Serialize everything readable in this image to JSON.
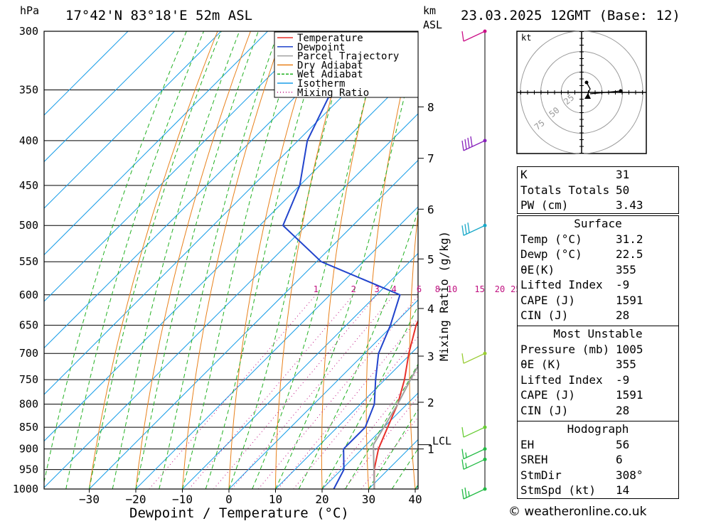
{
  "header": {
    "pressure_unit": "hPa",
    "location": "17°42'N  83°18'E  52m  ASL",
    "height_unit_1": "km",
    "height_unit_2": "ASL",
    "datetime": "23.03.2025  12GMT  (Base: 12)"
  },
  "chart_data": {
    "type": "line",
    "title": "17°42'N  83°18'E  52m  ASL",
    "xlabel": "Dewpoint / Temperature (°C)",
    "ylabel": "hPa",
    "right_label": "Mixing Ratio (g/kg)",
    "x_ticks": [
      -30,
      -20,
      -10,
      0,
      10,
      20,
      30,
      40
    ],
    "x_tick_labels": [
      "−30",
      "−20",
      "−10",
      "0",
      "10",
      "20",
      "30",
      "40"
    ],
    "xlim": [
      -40,
      40
    ],
    "y_ticks": [
      300,
      350,
      400,
      450,
      500,
      550,
      600,
      650,
      700,
      750,
      800,
      850,
      900,
      950,
      1000
    ],
    "ylim": [
      1000,
      300
    ],
    "y_scale": "log",
    "km_ticks": [
      {
        "label": "1",
        "p": 900
      },
      {
        "label": "2",
        "p": 796
      },
      {
        "label": "3",
        "p": 705
      },
      {
        "label": "4",
        "p": 622
      },
      {
        "label": "5",
        "p": 546
      },
      {
        "label": "6",
        "p": 479
      },
      {
        "label": "7",
        "p": 419
      },
      {
        "label": "8",
        "p": 366
      }
    ],
    "lcl": {
      "label": "LCL",
      "p": 890
    },
    "mixing_ratio_labels": [
      "1",
      "2",
      "3",
      "4",
      "6",
      "8",
      "10",
      "15",
      "20",
      "25"
    ],
    "mixing_ratio_values": [
      1,
      2,
      3,
      4,
      6,
      8,
      10,
      15,
      20,
      25
    ],
    "legend": [
      {
        "name": "Temperature",
        "color": "#e8302a",
        "dash": "solid"
      },
      {
        "name": "Dewpoint",
        "color": "#2244cc",
        "dash": "solid"
      },
      {
        "name": "Parcel Trajectory",
        "color": "#a0a0a0",
        "dash": "solid"
      },
      {
        "name": "Dry Adiabat",
        "color": "#e8801a",
        "dash": "solid"
      },
      {
        "name": "Wet Adiabat",
        "color": "#22b022",
        "dash": "dashed"
      },
      {
        "name": "Isotherm",
        "color": "#1a9ee8",
        "dash": "solid"
      },
      {
        "name": "Mixing Ratio",
        "color": "#c01080",
        "dash": "dotted"
      }
    ],
    "legend_position": "top-right",
    "series": [
      {
        "name": "Temperature",
        "color": "#e8302a",
        "points": [
          [
            1000,
            31.2
          ],
          [
            950,
            27.0
          ],
          [
            900,
            23.5
          ],
          [
            850,
            20.8
          ],
          [
            800,
            18.0
          ],
          [
            750,
            14.2
          ],
          [
            700,
            9.5
          ],
          [
            650,
            5.0
          ],
          [
            600,
            1.5
          ],
          [
            550,
            -3.5
          ],
          [
            500,
            -9.5
          ],
          [
            450,
            -17.0
          ],
          [
            400,
            -24.5
          ],
          [
            350,
            -33.0
          ]
        ]
      },
      {
        "name": "Dewpoint",
        "color": "#2244cc",
        "points": [
          [
            1000,
            22.5
          ],
          [
            950,
            20.5
          ],
          [
            900,
            16.0
          ],
          [
            850,
            16.0
          ],
          [
            800,
            13.0
          ],
          [
            750,
            8.0
          ],
          [
            700,
            3.0
          ],
          [
            650,
            -0.5
          ],
          [
            600,
            -5.0
          ],
          [
            550,
            -29.0
          ],
          [
            500,
            -45.0
          ],
          [
            450,
            -50.0
          ],
          [
            400,
            -58.0
          ],
          [
            300,
            -70.0
          ]
        ]
      },
      {
        "name": "Parcel Trajectory",
        "color": "#a0a0a0",
        "points": [
          [
            1000,
            31.2
          ],
          [
            890,
            21.5
          ],
          [
            850,
            20.0
          ],
          [
            800,
            18.0
          ],
          [
            750,
            15.5
          ],
          [
            700,
            13.0
          ],
          [
            650,
            10.0
          ],
          [
            600,
            6.5
          ],
          [
            550,
            2.5
          ],
          [
            500,
            -2.5
          ],
          [
            450,
            -8.5
          ],
          [
            400,
            -16.0
          ],
          [
            370,
            -21.0
          ]
        ]
      }
    ],
    "wind_barbs": [
      {
        "p": 300,
        "speed_kt": 10,
        "color": "#cc1188"
      },
      {
        "p": 400,
        "speed_kt": 40,
        "color": "#8822bb"
      },
      {
        "p": 500,
        "speed_kt": 30,
        "color": "#18a8c8"
      },
      {
        "p": 700,
        "speed_kt": 10,
        "color": "#99cc33"
      },
      {
        "p": 850,
        "speed_kt": 10,
        "color": "#66cc33"
      },
      {
        "p": 900,
        "speed_kt": 15,
        "color": "#22bb44"
      },
      {
        "p": 925,
        "speed_kt": 15,
        "color": "#22bb44"
      },
      {
        "p": 1000,
        "speed_kt": 25,
        "color": "#22bb44"
      }
    ],
    "hodograph": {
      "unit": "kt",
      "ring_labels": [
        "25",
        "50",
        "75"
      ],
      "trace": [
        [
          0,
          0
        ],
        [
          1,
          4
        ],
        [
          6,
          8
        ],
        [
          18,
          10
        ],
        [
          20,
          11
        ]
      ]
    }
  },
  "indices": {
    "rows": [
      {
        "label": "K",
        "value": "31"
      },
      {
        "label": "Totals Totals",
        "value": "50"
      },
      {
        "label": "PW (cm)",
        "value": "3.43"
      }
    ]
  },
  "surface": {
    "heading": "Surface",
    "rows": [
      {
        "label": "Temp (°C)",
        "value": "31.2"
      },
      {
        "label": "Dewp (°C)",
        "value": "22.5"
      },
      {
        "label": "θE(K)",
        "value": "355"
      },
      {
        "label": "Lifted Index",
        "value": "-9"
      },
      {
        "label": "CAPE (J)",
        "value": "1591"
      },
      {
        "label": "CIN (J)",
        "value": "28"
      }
    ]
  },
  "most_unstable": {
    "heading": "Most Unstable",
    "rows": [
      {
        "label": "Pressure (mb)",
        "value": "1005"
      },
      {
        "label": "θE (K)",
        "value": "355"
      },
      {
        "label": "Lifted Index",
        "value": "-9"
      },
      {
        "label": "CAPE (J)",
        "value": "1591"
      },
      {
        "label": "CIN (J)",
        "value": "28"
      }
    ]
  },
  "hodograph_table": {
    "heading": "Hodograph",
    "rows": [
      {
        "label": "EH",
        "value": "56"
      },
      {
        "label": "SREH",
        "value": "6"
      },
      {
        "label": "StmDir",
        "value": "308°"
      },
      {
        "label": "StmSpd (kt)",
        "value": "14"
      }
    ]
  },
  "footer": {
    "copyright": "© weatheronline.co.uk"
  }
}
